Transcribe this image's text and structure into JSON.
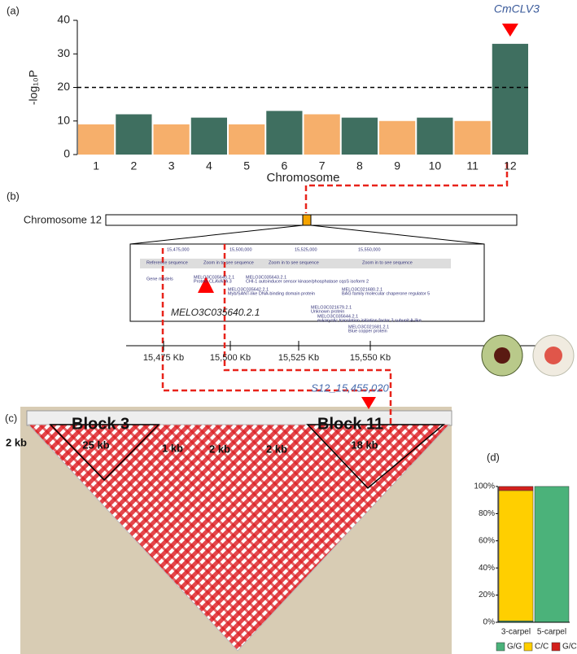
{
  "panel_labels": [
    "(a)",
    "(b)",
    "(c)",
    "(d)"
  ],
  "chart_data": [
    {
      "type": "manhattan",
      "ylabel": "-log₁₀P",
      "xlabel": "Chromosome",
      "annotation": "CmCLV3",
      "categories": [
        "1",
        "2",
        "3",
        "4",
        "5",
        "6",
        "7",
        "8",
        "9",
        "10",
        "11",
        "12"
      ],
      "values": [
        9,
        12,
        9,
        11,
        9,
        13,
        12,
        11,
        10,
        11,
        10,
        33
      ],
      "colors": [
        "#f5a65b",
        "#2a5f4f"
      ],
      "threshold": 20,
      "ylim": [
        0,
        40
      ],
      "yticks": [
        0,
        10,
        20,
        30,
        40
      ]
    },
    {
      "type": "stacked_bar",
      "categories": [
        "3-carpel",
        "5-carpel"
      ],
      "series": [
        {
          "name": "G/G",
          "color": "#4bb27a",
          "values": [
            1,
            100
          ]
        },
        {
          "name": "C/C",
          "color": "#ffcf00",
          "values": [
            96,
            0
          ]
        },
        {
          "name": "G/C",
          "color": "#d3201b",
          "values": [
            3,
            0
          ]
        }
      ],
      "ylim": [
        0,
        100
      ],
      "yticks": [
        {
          "value": 0,
          "label": "0%"
        },
        {
          "value": 20,
          "label": "20%"
        },
        {
          "value": 40,
          "label": "40%"
        },
        {
          "value": 60,
          "label": "60%"
        },
        {
          "value": 80,
          "label": "80%"
        },
        {
          "value": 100,
          "label": "100%"
        }
      ]
    }
  ],
  "gene_region": {
    "chromosome_label": "Chromosome 12",
    "browser_texts": [
      "15,475,000",
      "15,500,000",
      "15,525,000",
      "15,550,000",
      "Reference sequence",
      "Zoom in to see sequence",
      "Zoom in to see sequence",
      "Zoom in to see sequence",
      "Gene models",
      "MELO3C035640.2.1",
      "Protein CLAVATA 3",
      "MELO3C035643.2.1",
      "CHI-1 autoinducer sensor kinase/phosphatase cqsS isoform 2",
      "MELO3C035642.2.1",
      "Myb/SANT-like DNA-binding domain protein",
      "MELO3C021680.2.1",
      "BAG family molecular chaperone regulator 5",
      "MELO3C021679.2.1",
      "Unknown protein",
      "MELO3C035644.2.1",
      "eukaryotic translation initiation factor 3 subunit A-like",
      "MELO3C021681.2.1",
      "Blue copper protein"
    ],
    "axis_labels": [
      "15,475 Kb",
      "15,500 Kb",
      "15,525 Kb",
      "15,550 Kb"
    ],
    "gene_label": "MELO3C035640.2.1",
    "snp_label": "S12_15,455,020"
  },
  "ld_blocks": {
    "labels": [
      "Block 3",
      "Block 11"
    ],
    "sizes": [
      "2 kb",
      "25 kb",
      "1 kb",
      "2 kb",
      "2 kb",
      "18 kb"
    ]
  }
}
